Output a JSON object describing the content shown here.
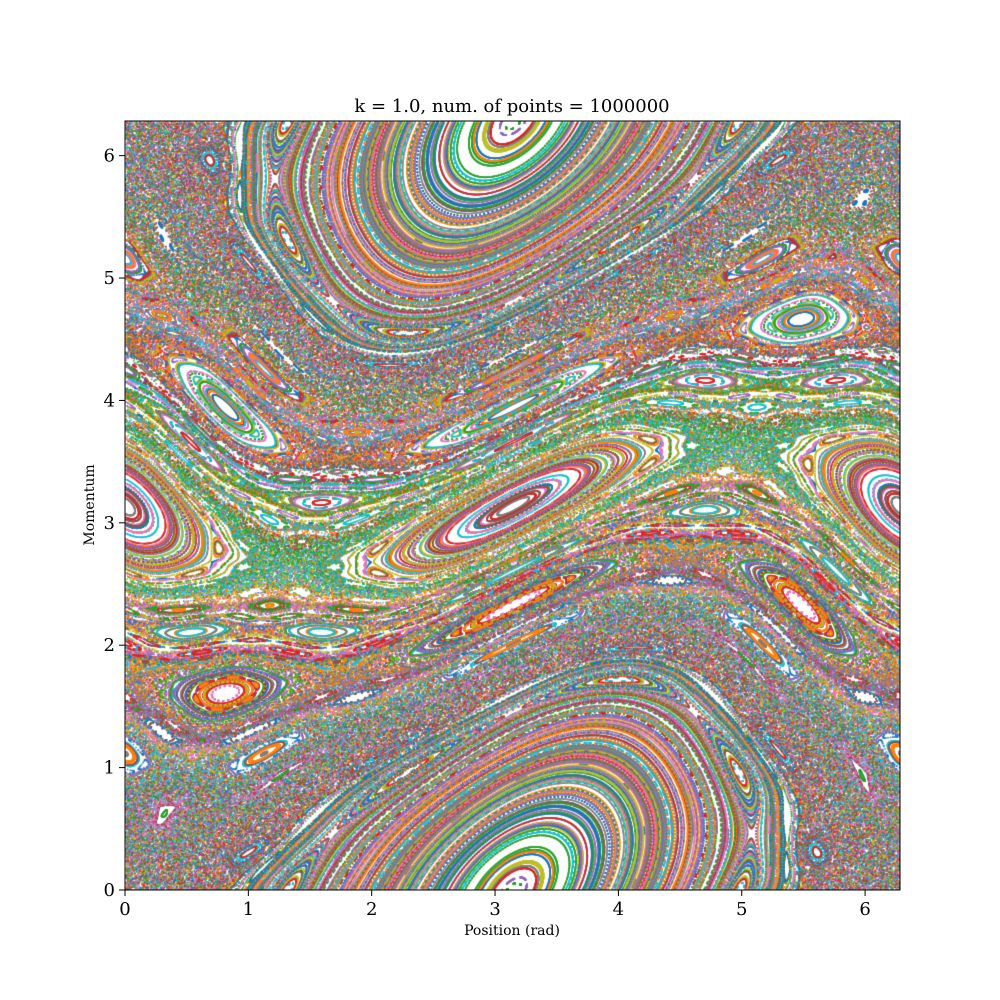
{
  "chart_data": {
    "type": "scatter",
    "title": "k = 1.0, num. of  points = 1000000",
    "xlabel": "Position (rad)",
    "ylabel": "Momentum",
    "xlim": [
      0,
      6.283
    ],
    "ylim": [
      0,
      6.283
    ],
    "grid": false,
    "x_ticks": [
      0,
      1,
      2,
      3,
      4,
      5,
      6
    ],
    "y_ticks": [
      0,
      1,
      2,
      3,
      4,
      5,
      6
    ],
    "map": "standard_map",
    "k": 1.0,
    "num_points": 1000000,
    "palette": [
      "#1f77b4",
      "#ff7f0e",
      "#2ca02c",
      "#d62728",
      "#9467bd",
      "#8c564b",
      "#e377c2",
      "#7f7f7f",
      "#bcbd22",
      "#17becf"
    ]
  }
}
